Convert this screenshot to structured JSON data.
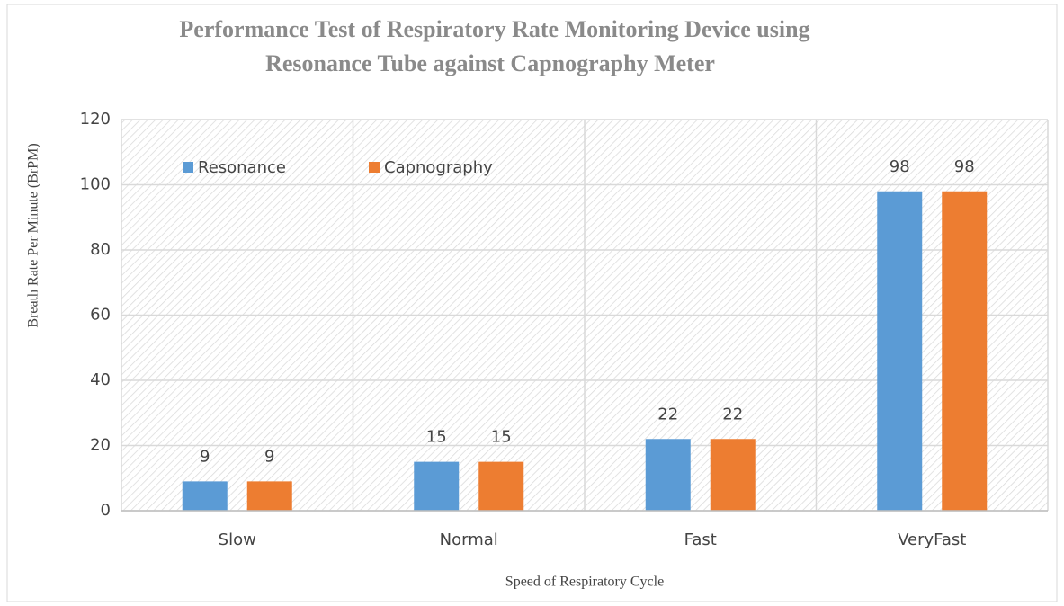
{
  "chart_data": {
    "type": "bar",
    "title": "Performance Test of Respiratory Rate Monitoring Device using",
    "subtitle": "Resonance Tube against Capnography Meter",
    "x_label": "Speed of Respiratory Cycle",
    "y_label": "Breath Rate Per Minute (BrPM)",
    "categories": [
      "Slow",
      "Normal",
      "Fast",
      "VeryFast"
    ],
    "series": [
      {
        "name": "Resonance",
        "color": "#5b9bd5",
        "values": [
          9,
          15,
          22,
          98
        ]
      },
      {
        "name": "Capnography",
        "color": "#ed7d31",
        "values": [
          9,
          15,
          22,
          98
        ]
      }
    ],
    "ylim": [
      0,
      120
    ],
    "yticks": [
      0,
      20,
      40,
      60,
      80,
      100,
      120
    ],
    "grid": true
  }
}
